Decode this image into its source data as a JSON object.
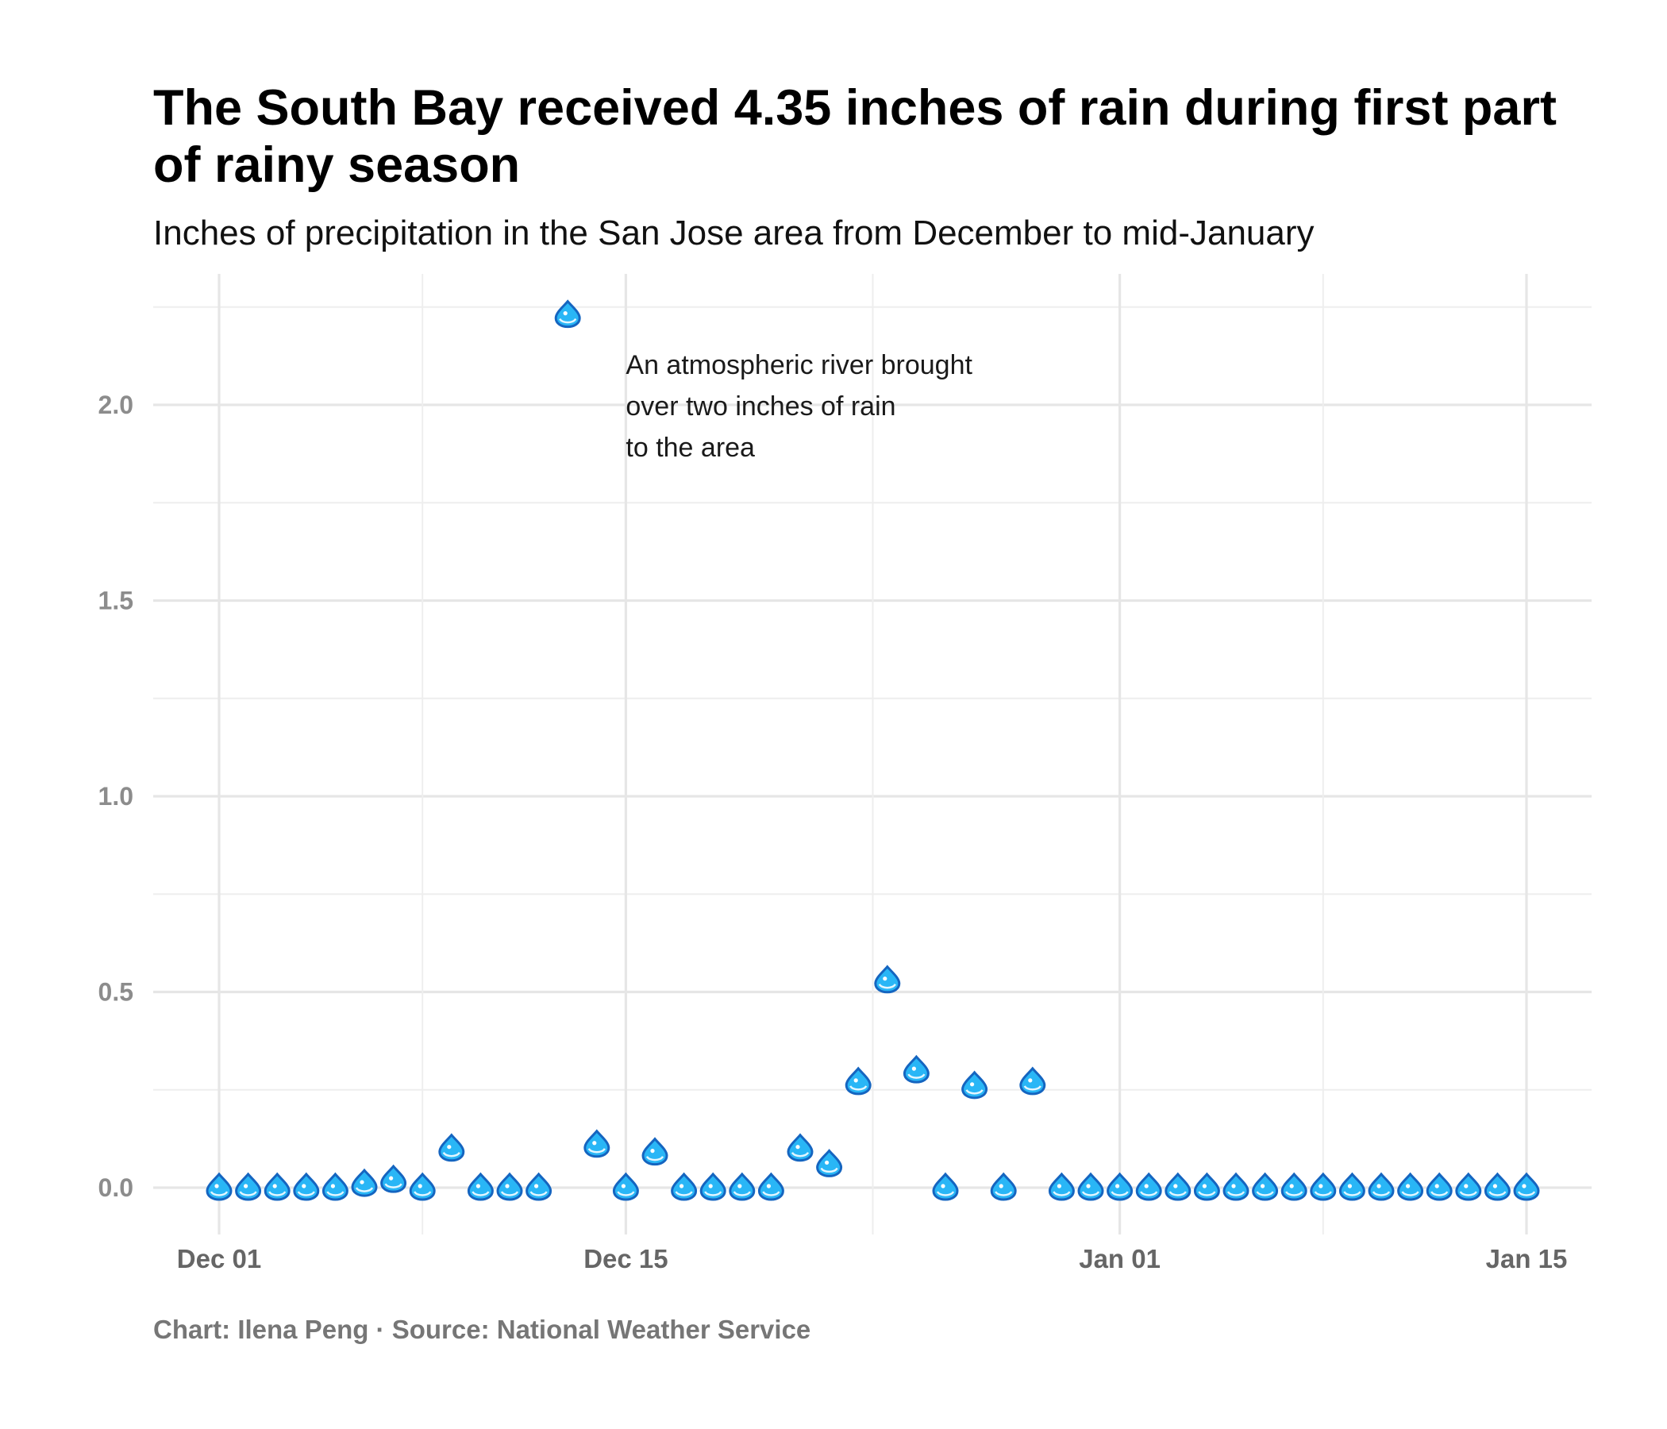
{
  "header": {
    "title": "The South Bay received 4.35 inches of rain during first part of rainy season",
    "subtitle": "Inches of precipitation in the San Jose area from December to mid-January"
  },
  "footer": {
    "caption": "Chart: Ilena Peng · Source: National Weather Service"
  },
  "chart_data": {
    "type": "scatter",
    "marker": "droplet-icon",
    "marker_color": "#29b6f6",
    "marker_outline": "#1565c0",
    "title": "The South Bay received 4.35 inches of rain during first part of rainy season",
    "subtitle": "Inches of precipitation in the San Jose area from December to mid-January",
    "xlabel": "",
    "ylabel": "",
    "x_ticks": [
      "Dec 01",
      "Dec 15",
      "Jan 01",
      "Jan 15"
    ],
    "y_ticks": [
      "0.0",
      "0.5",
      "1.0",
      "1.5",
      "2.0"
    ],
    "ylim": [
      -0.11,
      2.33
    ],
    "grid": true,
    "legend": "none",
    "x": [
      "Dec 01",
      "Dec 02",
      "Dec 03",
      "Dec 04",
      "Dec 05",
      "Dec 06",
      "Dec 07",
      "Dec 08",
      "Dec 09",
      "Dec 10",
      "Dec 11",
      "Dec 12",
      "Dec 13",
      "Dec 14",
      "Dec 15",
      "Dec 16",
      "Dec 17",
      "Dec 18",
      "Dec 19",
      "Dec 20",
      "Dec 21",
      "Dec 22",
      "Dec 23",
      "Dec 24",
      "Dec 25",
      "Dec 26",
      "Dec 27",
      "Dec 28",
      "Dec 29",
      "Dec 30",
      "Dec 31",
      "Jan 01",
      "Jan 02",
      "Jan 03",
      "Jan 04",
      "Jan 05",
      "Jan 06",
      "Jan 07",
      "Jan 08",
      "Jan 09",
      "Jan 10",
      "Jan 11",
      "Jan 12",
      "Jan 13",
      "Jan 14",
      "Jan 15"
    ],
    "values": [
      0,
      0,
      0,
      0,
      0,
      0.01,
      0.02,
      0,
      0.1,
      0,
      0,
      0,
      2.23,
      0.11,
      0,
      0.09,
      0,
      0,
      0,
      0,
      0.1,
      0.06,
      0.27,
      0.53,
      0.3,
      0,
      0.26,
      0,
      0.27,
      0,
      0,
      0,
      0,
      0,
      0,
      0,
      0,
      0,
      0,
      0,
      0,
      0,
      0,
      0,
      0,
      0
    ],
    "annotation": {
      "lines": [
        "An atmospheric river brought",
        "over two inches of rain",
        "to the area"
      ],
      "x": "Dec 15",
      "y": 2.0
    }
  }
}
